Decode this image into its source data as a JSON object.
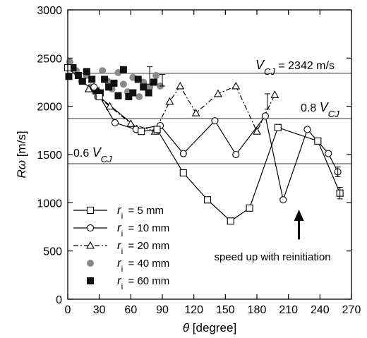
{
  "chart_data": {
    "type": "line",
    "xlabel": "θ [degree]",
    "ylabel": "Rω [m/s]",
    "xlim": [
      0,
      270
    ],
    "ylim": [
      0,
      3000
    ],
    "x_ticks": [
      "0",
      "30",
      "60",
      "90",
      "120",
      "150",
      "180",
      "210",
      "240",
      "270"
    ],
    "y_ticks": [
      "0",
      "500",
      "1000",
      "1500",
      "2000",
      "2500",
      "3000"
    ],
    "grid": false,
    "legend_position": "bottom-left",
    "reference_lines": [
      {
        "y": 2342,
        "label": "V_CJ = 2342 m/s",
        "label_main": "V",
        "label_sub": "CJ",
        "label_suffix": "= 2342 m/s"
      },
      {
        "y": 1873.6,
        "label": "0.8 V_CJ",
        "label_prefix": "0.8",
        "label_main": "V",
        "label_sub": "CJ"
      },
      {
        "y": 1405.2,
        "label": "0.6 V_CJ",
        "label_prefix": "0.6",
        "label_main": "V",
        "label_sub": "CJ"
      }
    ],
    "series": [
      {
        "name": "r_i = 5 mm",
        "label_main": "r",
        "label_sub": "i",
        "label_value": "=   5 mm",
        "marker": "square-open",
        "line": "solid",
        "points": [
          [
            0,
            2400
          ],
          [
            30,
            2100
          ],
          [
            70,
            1740
          ],
          [
            85,
            1760
          ],
          [
            110,
            1310
          ],
          [
            133,
            1030
          ],
          [
            155,
            810
          ],
          [
            173,
            945
          ],
          [
            200,
            1780
          ],
          [
            238,
            1640
          ],
          [
            259,
            1100
          ]
        ]
      },
      {
        "name": "r_i = 10 mm",
        "label_main": "r",
        "label_sub": "i",
        "label_value": "= 10 mm",
        "marker": "circle-open",
        "line": "solid",
        "points": [
          [
            25,
            2200
          ],
          [
            45,
            1830
          ],
          [
            65,
            1760
          ],
          [
            88,
            1800
          ],
          [
            110,
            1510
          ],
          [
            140,
            1850
          ],
          [
            160,
            1500
          ],
          [
            188,
            1900
          ],
          [
            205,
            1030
          ],
          [
            228,
            1760
          ],
          [
            248,
            1510
          ],
          [
            257,
            1320
          ]
        ]
      },
      {
        "name": "r_i = 20 mm",
        "label_main": "r",
        "label_sub": "i",
        "label_value": "= 20 mm",
        "marker": "triangle-open",
        "line": "dashdot",
        "points": [
          [
            20,
            2180
          ],
          [
            40,
            2000
          ],
          [
            60,
            1820
          ],
          [
            83,
            1740
          ],
          [
            97,
            2050
          ],
          [
            107,
            2210
          ],
          [
            122,
            1930
          ],
          [
            143,
            2130
          ],
          [
            160,
            2210
          ],
          [
            180,
            1740
          ],
          [
            197,
            2120
          ]
        ]
      },
      {
        "name": "r_i = 40 mm",
        "label_main": "r",
        "label_sub": "i",
        "label_value": "= 40 mm",
        "marker": "circle-filled",
        "line": "none",
        "points": [
          [
            2,
            2460
          ],
          [
            8,
            2370
          ],
          [
            13,
            2260
          ],
          [
            18,
            2320
          ],
          [
            22,
            2200
          ],
          [
            28,
            2100
          ],
          [
            33,
            2370
          ],
          [
            38,
            2260
          ],
          [
            42,
            2180
          ],
          [
            48,
            2350
          ],
          [
            53,
            2230
          ],
          [
            57,
            2150
          ],
          [
            62,
            2300
          ],
          [
            68,
            2100
          ],
          [
            72,
            2250
          ],
          [
            78,
            2200
          ],
          [
            84,
            2320
          ],
          [
            88,
            2210
          ]
        ]
      },
      {
        "name": "r_i = 60 mm",
        "label_main": "r",
        "label_sub": "i",
        "label_value": "= 60 mm",
        "marker": "square-filled",
        "line": "none",
        "points": [
          [
            1,
            2310
          ],
          [
            5,
            2400
          ],
          [
            10,
            2320
          ],
          [
            14,
            2260
          ],
          [
            18,
            2360
          ],
          [
            23,
            2280
          ],
          [
            27,
            2160
          ],
          [
            31,
            2140
          ],
          [
            35,
            2280
          ],
          [
            39,
            2200
          ],
          [
            44,
            2240
          ],
          [
            48,
            2110
          ],
          [
            53,
            2380
          ],
          [
            58,
            2100
          ],
          [
            62,
            2140
          ],
          [
            67,
            2280
          ],
          [
            72,
            2200
          ],
          [
            77,
            2140
          ],
          [
            82,
            2250
          ]
        ]
      }
    ],
    "error_bars": [
      {
        "x": 78,
        "y": 2320,
        "err": 90
      },
      {
        "x": 90,
        "y": 2270,
        "err": 60
      },
      {
        "x": 190,
        "y": 2050,
        "err": 80
      },
      {
        "x": 259,
        "y": 1100,
        "err": 60
      },
      {
        "x": 257,
        "y": 1320,
        "err": 50
      }
    ],
    "annotations": [
      {
        "text": "speed up with reinitiation",
        "arrow_x": 220,
        "arrow_y_from": 620,
        "arrow_y_to": 900
      }
    ]
  }
}
